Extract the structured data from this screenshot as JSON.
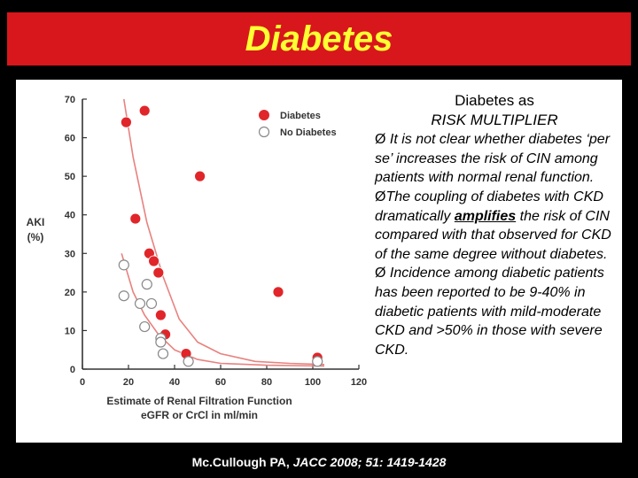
{
  "title": "Diabetes",
  "text_panel": {
    "heading_line1": "Diabetes as",
    "heading_line2": "RISK MULTIPLIER",
    "bullet_marker": "Ø",
    "bullet1": " It is not clear whether diabetes ‘per se’ increases the risk of CIN among patients with normal renal function.",
    "bullet2_pre": "The coupling of diabetes with CKD dramatically ",
    "bullet2_emph": "amplifies",
    "bullet2_post": " the risk of CIN compared with that observed for CKD of the same degree without diabetes.",
    "bullet3": " Incidence among diabetic patients has been reported to be 9-40% in diabetic patients with mild-moderate CKD and >50% in those with severe CKD."
  },
  "citation_normal": "Mc.Cullough PA, ",
  "citation_italic": "JACC 2008; 51: 1419-1428",
  "colors": {
    "title_bar": "#d7171c",
    "title_text": "#ffff33",
    "diabetes_marker": "#e0262a",
    "curve": "#e8827f"
  },
  "chart_data": {
    "type": "scatter",
    "xlabel_line1": "Estimate of Renal Filtration Function",
    "xlabel_line2": "eGFR or CrCl in ml/min",
    "ylabel_line1": "AKI",
    "ylabel_line2": "(%)",
    "xlim": [
      0,
      120
    ],
    "ylim": [
      0,
      70
    ],
    "xticks": [
      0,
      20,
      40,
      60,
      80,
      100,
      120
    ],
    "yticks": [
      0,
      10,
      20,
      30,
      40,
      50,
      60,
      70
    ],
    "legend_position": "top-right",
    "series": [
      {
        "name": "Diabetes",
        "filled": true,
        "points": [
          [
            19,
            64
          ],
          [
            27,
            67
          ],
          [
            23,
            39
          ],
          [
            29,
            30
          ],
          [
            31,
            28
          ],
          [
            33,
            25
          ],
          [
            34,
            14
          ],
          [
            36,
            9
          ],
          [
            45,
            4
          ],
          [
            51,
            50
          ],
          [
            85,
            20
          ],
          [
            102,
            3
          ]
        ]
      },
      {
        "name": "No Diabetes",
        "filled": false,
        "points": [
          [
            18,
            27
          ],
          [
            18,
            19
          ],
          [
            25,
            17
          ],
          [
            28,
            22
          ],
          [
            30,
            17
          ],
          [
            27,
            11
          ],
          [
            34,
            8
          ],
          [
            34,
            7
          ],
          [
            35,
            4
          ],
          [
            46,
            2
          ],
          [
            102,
            2
          ]
        ]
      }
    ],
    "curves": [
      {
        "name": "diabetes-trend",
        "points": [
          [
            18,
            70
          ],
          [
            22,
            55
          ],
          [
            28,
            38
          ],
          [
            35,
            24
          ],
          [
            42,
            13
          ],
          [
            50,
            7
          ],
          [
            60,
            4
          ],
          [
            75,
            2
          ],
          [
            90,
            1.5
          ],
          [
            105,
            1.2
          ]
        ]
      },
      {
        "name": "no-diabetes-trend",
        "points": [
          [
            17,
            30
          ],
          [
            22,
            20
          ],
          [
            27,
            14
          ],
          [
            33,
            9
          ],
          [
            40,
            5
          ],
          [
            50,
            2.5
          ],
          [
            60,
            1.5
          ],
          [
            80,
            1
          ],
          [
            105,
            0.8
          ]
        ]
      }
    ]
  }
}
